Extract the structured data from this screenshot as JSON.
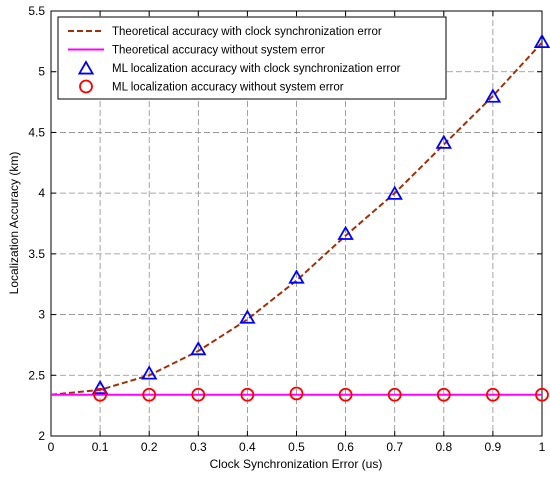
{
  "chart_data": {
    "type": "line",
    "xlabel": "Clock Synchronization Error (us)",
    "ylabel": "Localization Accuracy (km)",
    "xlim": [
      0,
      1
    ],
    "ylim": [
      2,
      5.5
    ],
    "x_ticks": [
      0,
      0.1,
      0.2,
      0.3,
      0.4,
      0.5,
      0.6,
      0.7,
      0.8,
      0.9,
      1
    ],
    "x_tick_labels": [
      "0",
      "0.1",
      "0.2",
      "0.3",
      "0.4",
      "0.5",
      "0.6",
      "0.7",
      "0.8",
      "0.9",
      "1"
    ],
    "y_ticks": [
      2,
      2.5,
      3,
      3.5,
      4,
      4.5,
      5,
      5.5
    ],
    "y_tick_labels": [
      "2",
      "2.5",
      "3",
      "3.5",
      "4",
      "4.5",
      "5",
      "5.5"
    ],
    "grid": true,
    "legend_position": "top-left",
    "series": [
      {
        "name": "Theoretical accuracy with clock synchronization error",
        "style": "dashed-line",
        "color": "#a0300a",
        "x": [
          0,
          0.1,
          0.2,
          0.3,
          0.4,
          0.5,
          0.6,
          0.7,
          0.8,
          0.9,
          1
        ],
        "y": [
          2.34,
          2.38,
          2.5,
          2.7,
          2.96,
          3.28,
          3.65,
          4.0,
          4.4,
          4.8,
          5.24
        ]
      },
      {
        "name": "Theoretical accuracy without system error",
        "style": "solid-line",
        "color": "#ff00ff",
        "x": [
          0,
          1
        ],
        "y": [
          2.34,
          2.34
        ]
      },
      {
        "name": "ML localization accuracy with clock synchronization error",
        "style": "triangle-marker",
        "color": "#0000ff",
        "x": [
          0.1,
          0.2,
          0.3,
          0.4,
          0.5,
          0.6,
          0.7,
          0.8,
          0.9,
          1
        ],
        "y": [
          2.39,
          2.51,
          2.71,
          2.97,
          3.3,
          3.66,
          3.99,
          4.41,
          4.79,
          5.24
        ]
      },
      {
        "name": "ML localization accuracy without system error",
        "style": "circle-marker",
        "color": "#ff0000",
        "x": [
          0.1,
          0.2,
          0.3,
          0.4,
          0.5,
          0.6,
          0.7,
          0.8,
          0.9,
          1
        ],
        "y": [
          2.34,
          2.34,
          2.34,
          2.34,
          2.35,
          2.34,
          2.34,
          2.34,
          2.34,
          2.34
        ]
      }
    ]
  }
}
